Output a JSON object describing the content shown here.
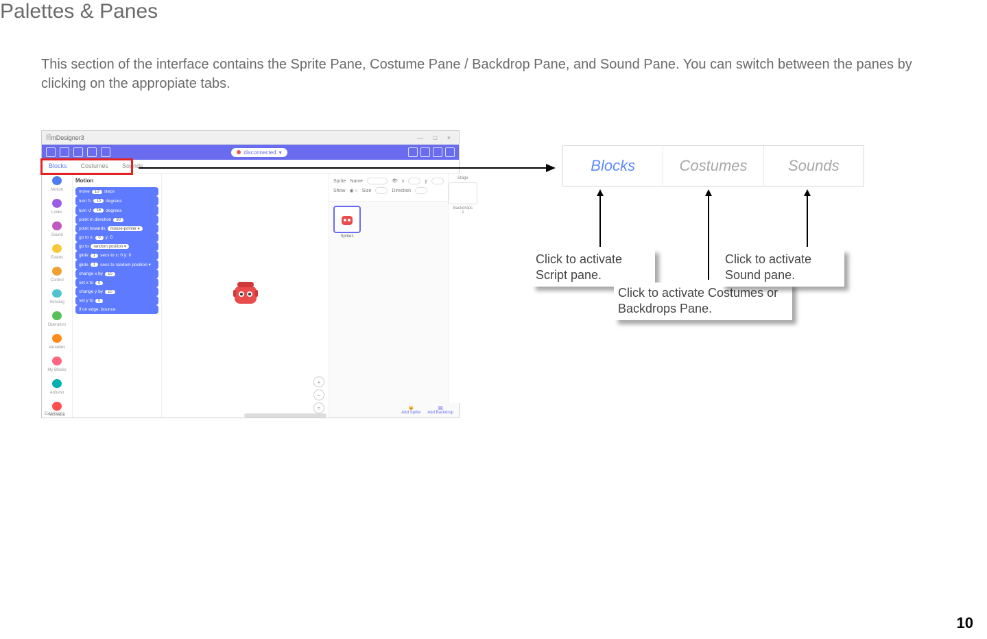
{
  "title": "Palettes & Panes",
  "body_text": "This section of the interface contains the Sprite Pane, Costume Pane / Backdrop Pane, and Sound Pane. You can switch between the panes by clicking on the appropiate tabs.",
  "page_number": "10",
  "screenshot": {
    "window_title": "mDesigner3",
    "disconnected_label": "disconnected",
    "tabs": {
      "blocks": "Blocks",
      "costumes": "Costumes",
      "sounds": "Sounds"
    },
    "categories": [
      {
        "label": "Motion",
        "color": "#4c7cf0"
      },
      {
        "label": "Looks",
        "color": "#9b5de5"
      },
      {
        "label": "Sound",
        "color": "#c058c0"
      },
      {
        "label": "Events",
        "color": "#f5c93b"
      },
      {
        "label": "Control",
        "color": "#f0a030"
      },
      {
        "label": "Sensing",
        "color": "#4fc4cf"
      },
      {
        "label": "Operators",
        "color": "#59c059"
      },
      {
        "label": "Variables",
        "color": "#ff8c1a"
      },
      {
        "label": "My Blocks",
        "color": "#ff6680"
      },
      {
        "label": "Arduino",
        "color": "#00b0b0"
      },
      {
        "label": "mCookie",
        "color": "#ff4d4d"
      }
    ],
    "blocks_header": "Motion",
    "blocks": [
      {
        "text": "move",
        "bubble": "10",
        "tail": "steps"
      },
      {
        "text": "turn ↻",
        "bubble": "15",
        "tail": "degrees"
      },
      {
        "text": "turn ↺",
        "bubble": "15",
        "tail": "degrees"
      },
      {
        "text": "point in direction",
        "bubble": "90",
        "tail": ""
      },
      {
        "text": "point towards",
        "bubble": "mouse-pointer ▾",
        "tail": ""
      },
      {
        "text": "go to x:",
        "bubble": "0",
        "tail": "y: 0"
      },
      {
        "text": "go to",
        "bubble": "random position ▾",
        "tail": ""
      },
      {
        "text": "glide",
        "bubble": "1",
        "tail": "secs to x: 0 y: 0"
      },
      {
        "text": "glide",
        "bubble": "1",
        "tail": "secs to random position ▾"
      },
      {
        "text": "change x by",
        "bubble": "10",
        "tail": ""
      },
      {
        "text": "set x to",
        "bubble": "0",
        "tail": ""
      },
      {
        "text": "change y by",
        "bubble": "10",
        "tail": ""
      },
      {
        "text": "set y to",
        "bubble": "0",
        "tail": ""
      },
      {
        "text": "if on edge, bounce",
        "bubble": "",
        "tail": ""
      }
    ],
    "extensions_label": "Extensions",
    "sprite_info": {
      "sprite_label": "Sprite",
      "name_label": "Name",
      "x_label": "x",
      "y_label": "y",
      "show_label": "Show",
      "size_label": "Size",
      "direction_label": "Direction"
    },
    "stage_label": "Stage",
    "backdrops_label": "Backdrops",
    "backdrops_count": "1",
    "sprite_thumb_label": "Sprite1",
    "add_sprite_label": "Add Sprite",
    "add_backdrop_label": "Add Backdrop"
  },
  "tabs_zoom": {
    "blocks": "Blocks",
    "costumes": "Costumes",
    "sounds": "Sounds"
  },
  "callouts": {
    "script": "Click to activate Script pane.",
    "costumes": "Click to activate Costumes or Backdrops Pane.",
    "sounds": "Click to activate Sound pane."
  },
  "colors": {
    "accent": "#6a6cf0",
    "tab_active": "#5e8aff",
    "tab_inactive": "#a8a8a8",
    "red_box": "#e62020",
    "block_bg": "#5e7aff",
    "sprite_red": "#e84c4c",
    "text_gray": "#6a6a6a"
  }
}
